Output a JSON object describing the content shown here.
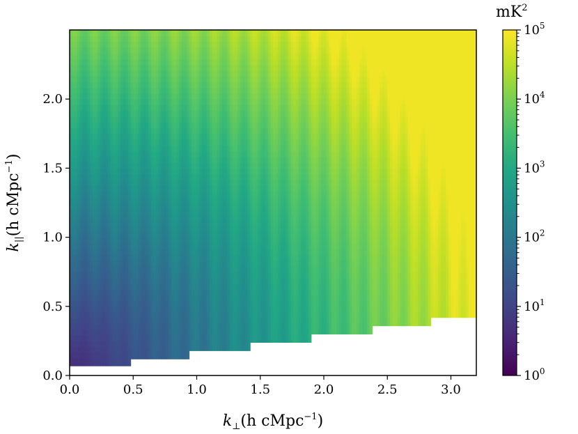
{
  "chart_data": {
    "type": "heatmap",
    "title": "",
    "xlabel": {
      "base": "k",
      "sub": "⊥",
      "units": "(h cMpc",
      "exp": "−1",
      "close": ")"
    },
    "ylabel": {
      "base": "k",
      "sub": "||",
      "units": "(h cMpc",
      "exp": "−1",
      "close": ")"
    },
    "xlim": [
      0.0,
      3.2
    ],
    "ylim": [
      0.0,
      2.5
    ],
    "xticks": [
      {
        "value": 0.0,
        "label": "0.0"
      },
      {
        "value": 0.5,
        "label": "0.5"
      },
      {
        "value": 1.0,
        "label": "1.0"
      },
      {
        "value": 1.5,
        "label": "1.5"
      },
      {
        "value": 2.0,
        "label": "2.0"
      },
      {
        "value": 2.5,
        "label": "2.5"
      },
      {
        "value": 3.0,
        "label": "3.0"
      }
    ],
    "yticks": [
      {
        "value": 0.0,
        "label": "0.0"
      },
      {
        "value": 0.5,
        "label": "0.5"
      },
      {
        "value": 1.0,
        "label": "1.0"
      },
      {
        "value": 1.5,
        "label": "1.5"
      },
      {
        "value": 2.0,
        "label": "2.0"
      }
    ],
    "grid": false,
    "colormap": "viridis",
    "colorbar": {
      "label": {
        "base": "mK",
        "exp": "2"
      },
      "scale": "log",
      "range": [
        1,
        100000
      ],
      "ticks": [
        {
          "value": 1,
          "base": "10",
          "exp": "0"
        },
        {
          "value": 10,
          "base": "10",
          "exp": "1"
        },
        {
          "value": 100,
          "base": "10",
          "exp": "2"
        },
        {
          "value": 1000,
          "base": "10",
          "exp": "3"
        },
        {
          "value": 10000,
          "base": "10",
          "exp": "4"
        },
        {
          "value": 100000,
          "base": "10",
          "exp": "5"
        }
      ]
    },
    "wedge_floor": [
      {
        "kperp_min": 0.0,
        "kperp_max": 0.475,
        "kpar_min": 0.07
      },
      {
        "kperp_min": 0.475,
        "kperp_max": 0.95,
        "kpar_min": 0.12
      },
      {
        "kperp_min": 0.95,
        "kperp_max": 1.425,
        "kpar_min": 0.18
      },
      {
        "kperp_min": 1.425,
        "kperp_max": 1.9,
        "kpar_min": 0.24
      },
      {
        "kperp_min": 1.9,
        "kperp_max": 2.375,
        "kpar_min": 0.3
      },
      {
        "kperp_min": 2.375,
        "kperp_max": 2.85,
        "kpar_min": 0.36
      },
      {
        "kperp_min": 2.85,
        "kperp_max": 3.2,
        "kpar_min": 0.42
      }
    ],
    "power_model": {
      "description_unit": "mK^2",
      "log10_at_origin": 0.0,
      "log10_max": 4.9
    }
  }
}
